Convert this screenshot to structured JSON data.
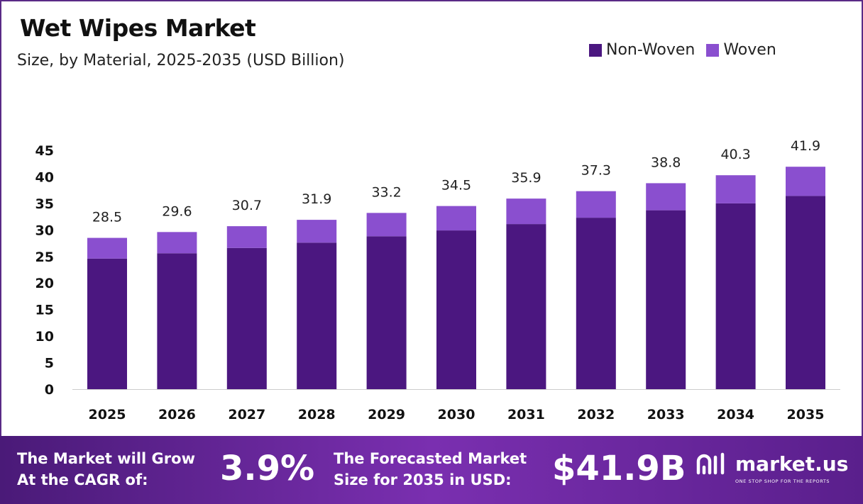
{
  "chart_data": {
    "type": "bar",
    "stacked": true,
    "title": "Wet Wipes Market",
    "subtitle": "Size, by Material, 2025-2035 (USD Billion)",
    "categories": [
      "2025",
      "2026",
      "2027",
      "2028",
      "2029",
      "2030",
      "2031",
      "2032",
      "2033",
      "2034",
      "2035"
    ],
    "series": [
      {
        "name": "Non-Woven",
        "color": "#4b1780",
        "values": [
          24.6,
          25.6,
          26.6,
          27.6,
          28.8,
          29.9,
          31.1,
          32.3,
          33.7,
          35.0,
          36.4
        ]
      },
      {
        "name": "Woven",
        "color": "#8a4fcf",
        "values": [
          3.9,
          4.0,
          4.1,
          4.3,
          4.4,
          4.6,
          4.8,
          5.0,
          5.1,
          5.3,
          5.5
        ]
      }
    ],
    "totals": [
      "28.5",
      "29.6",
      "30.7",
      "31.9",
      "33.2",
      "34.5",
      "35.9",
      "37.3",
      "38.8",
      "40.3",
      "41.9"
    ],
    "yticks": [
      "0",
      "5",
      "10",
      "15",
      "20",
      "25",
      "30",
      "35",
      "40",
      "45"
    ],
    "ylim": [
      0,
      45
    ],
    "grid": false,
    "legend_position": "top-right"
  },
  "footer": {
    "cagr_label_line1": "The Market will Grow",
    "cagr_label_line2": "At the CAGR of:",
    "cagr_value": "3.9%",
    "forecast_label_line1": "The Forecasted Market",
    "forecast_label_line2": "Size for 2035 in USD:",
    "forecast_value": "$41.9B",
    "brand": "market.us",
    "tagline": "ONE STOP SHOP FOR THE REPORTS"
  }
}
